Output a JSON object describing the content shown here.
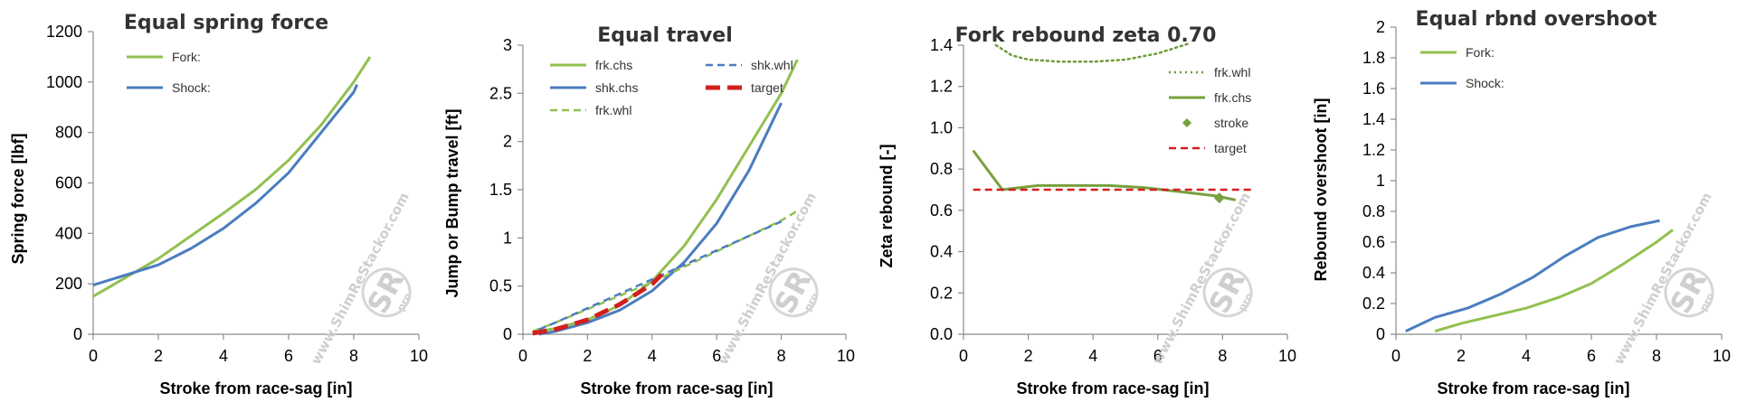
{
  "watermark": {
    "url": "www.ShimReStackor.com",
    "logo": "SR",
    "sub": "pro"
  },
  "chart_data": [
    {
      "type": "line",
      "title": "Equal spring force",
      "xlabel": "Stroke from race-sag [in]",
      "ylabel": "Spring force [lbf]",
      "xlim": [
        0,
        10
      ],
      "ylim": [
        0,
        1200
      ],
      "xticks": [
        0,
        2,
        4,
        6,
        8,
        10
      ],
      "xtick_labels": [
        "0",
        "2",
        "4",
        "6",
        "8",
        "10"
      ],
      "yticks": [
        0,
        200,
        400,
        600,
        800,
        1000,
        1200
      ],
      "ytick_labels": [
        "0",
        "200",
        "400",
        "600",
        "800",
        "1000",
        "1200"
      ],
      "legend": "top-left",
      "grid": false,
      "series": [
        {
          "name": "Fork:",
          "color": "#92c050",
          "style": "solid",
          "x": [
            0,
            1,
            2,
            3,
            4,
            5,
            6,
            7,
            8,
            8.5
          ],
          "y": [
            150,
            225,
            300,
            390,
            480,
            575,
            690,
            830,
            1000,
            1100
          ]
        },
        {
          "name": "Shock:",
          "color": "#4a7dbf",
          "style": "solid",
          "x": [
            0,
            1,
            2,
            3,
            4,
            5,
            6,
            7,
            8,
            8.1
          ],
          "y": [
            195,
            235,
            275,
            340,
            420,
            520,
            640,
            800,
            960,
            990
          ]
        }
      ]
    },
    {
      "type": "line",
      "title": "Equal travel",
      "xlabel": "Stroke from race-sag [in]",
      "ylabel": "Jump or Bump travel [ft]",
      "xlim": [
        0,
        10
      ],
      "ylim": [
        0,
        3
      ],
      "xticks": [
        0,
        2,
        4,
        6,
        8,
        10
      ],
      "xtick_labels": [
        "0",
        "2",
        "4",
        "6",
        "8",
        "10"
      ],
      "yticks": [
        0,
        0.5,
        1,
        1.5,
        2,
        2.5,
        3
      ],
      "ytick_labels": [
        "0",
        "0.5",
        "1",
        "1.5",
        "2",
        "2.5",
        "3"
      ],
      "legend": "top",
      "grid": false,
      "series": [
        {
          "name": "frk.chs",
          "color": "#92c050",
          "style": "solid",
          "x": [
            0.3,
            1,
            2,
            3,
            4,
            5,
            6,
            7,
            8,
            8.5
          ],
          "y": [
            0.02,
            0.06,
            0.15,
            0.3,
            0.55,
            0.92,
            1.4,
            1.95,
            2.5,
            2.85
          ]
        },
        {
          "name": "shk.chs",
          "color": "#4a7dbf",
          "style": "solid",
          "x": [
            0.5,
            1,
            2,
            3,
            4,
            5,
            6,
            7,
            8
          ],
          "y": [
            0.0,
            0.03,
            0.12,
            0.25,
            0.45,
            0.75,
            1.15,
            1.7,
            2.4
          ]
        },
        {
          "name": "frk.whl",
          "color": "#92c050",
          "style": "dash",
          "x": [
            0.3,
            1,
            2,
            3,
            4,
            5,
            6,
            7,
            8,
            8.5
          ],
          "y": [
            0.03,
            0.12,
            0.26,
            0.4,
            0.54,
            0.7,
            0.86,
            1.02,
            1.18,
            1.28
          ]
        },
        {
          "name": "shk.whl",
          "color": "#4a7dbf",
          "style": "dash",
          "x": [
            0.5,
            1,
            2,
            3,
            4,
            5,
            6,
            7,
            8
          ],
          "y": [
            0.05,
            0.12,
            0.27,
            0.42,
            0.57,
            0.72,
            0.87,
            1.02,
            1.17
          ]
        },
        {
          "name": "target",
          "color": "#d21f1f",
          "style": "longdash",
          "x": [
            0.3,
            1,
            2,
            3,
            4,
            4.3
          ],
          "y": [
            0.01,
            0.05,
            0.15,
            0.31,
            0.52,
            0.62
          ]
        }
      ]
    },
    {
      "type": "line",
      "title": "Fork rebound zeta 0.70",
      "xlabel": "Stroke from race-sag [in]",
      "ylabel": "Zeta rebound [-]",
      "xlim": [
        0,
        10
      ],
      "ylim": [
        0,
        1.4
      ],
      "xticks": [
        0,
        2,
        4,
        6,
        8,
        10
      ],
      "xtick_labels": [
        "0",
        "2",
        "4",
        "6",
        "8",
        "10"
      ],
      "yticks": [
        0,
        0.2,
        0.4,
        0.6,
        0.8,
        1,
        1.2,
        1.4
      ],
      "ytick_labels": [
        "0.0",
        "0.2",
        "0.4",
        "0.6",
        "0.8",
        "1.0",
        "1.2",
        "1.4"
      ],
      "legend": "right",
      "grid": false,
      "series": [
        {
          "name": "frk.whl",
          "color": "#6f9a3a",
          "style": "dot",
          "x": [
            1,
            1.5,
            2,
            3,
            4,
            5,
            6,
            7
          ],
          "y": [
            1.4,
            1.35,
            1.33,
            1.32,
            1.32,
            1.33,
            1.36,
            1.41
          ]
        },
        {
          "name": "frk.chs",
          "color": "#77a03e",
          "style": "solid",
          "x": [
            0.3,
            1.2,
            2.3,
            3.4,
            4.5,
            5.6,
            6.7,
            7.8,
            8.4
          ],
          "y": [
            0.89,
            0.7,
            0.72,
            0.72,
            0.72,
            0.71,
            0.69,
            0.67,
            0.65
          ]
        },
        {
          "name": "stroke",
          "color": "#77a03e",
          "style": "marker",
          "x": [
            7.9
          ],
          "y": [
            0.66
          ]
        },
        {
          "name": "target",
          "color": "#d21f1f",
          "style": "dash",
          "x": [
            0.3,
            9
          ],
          "y": [
            0.7,
            0.7
          ]
        }
      ]
    },
    {
      "type": "line",
      "title": "Equal rbnd overshoot",
      "xlabel": "Stroke from race-sag [in]",
      "ylabel": "Rebound overshoot [in]",
      "xlim": [
        0,
        10
      ],
      "ylim": [
        0,
        2
      ],
      "xticks": [
        0,
        2,
        4,
        6,
        8,
        10
      ],
      "xtick_labels": [
        "0",
        "2",
        "4",
        "6",
        "8",
        "10"
      ],
      "yticks": [
        0,
        0.2,
        0.4,
        0.6,
        0.8,
        1,
        1.2,
        1.4,
        1.6,
        1.8,
        2
      ],
      "ytick_labels": [
        "0",
        "0.2",
        "0.4",
        "0.6",
        "0.8",
        "1",
        "1.2",
        "1.4",
        "1.6",
        "1.8",
        "2"
      ],
      "legend": "top-left",
      "grid": false,
      "series": [
        {
          "name": "Fork:",
          "color": "#92c050",
          "style": "solid",
          "x": [
            1.2,
            2,
            3,
            4,
            5,
            6,
            7,
            8,
            8.5
          ],
          "y": [
            0.02,
            0.07,
            0.12,
            0.17,
            0.24,
            0.33,
            0.46,
            0.6,
            0.68
          ]
        },
        {
          "name": "Shock:",
          "color": "#4a7dbf",
          "style": "solid",
          "x": [
            0.3,
            1.2,
            2.2,
            3.2,
            4.2,
            5.2,
            6.2,
            7.2,
            8.1
          ],
          "y": [
            0.02,
            0.11,
            0.17,
            0.26,
            0.37,
            0.51,
            0.63,
            0.7,
            0.74
          ]
        }
      ]
    }
  ]
}
